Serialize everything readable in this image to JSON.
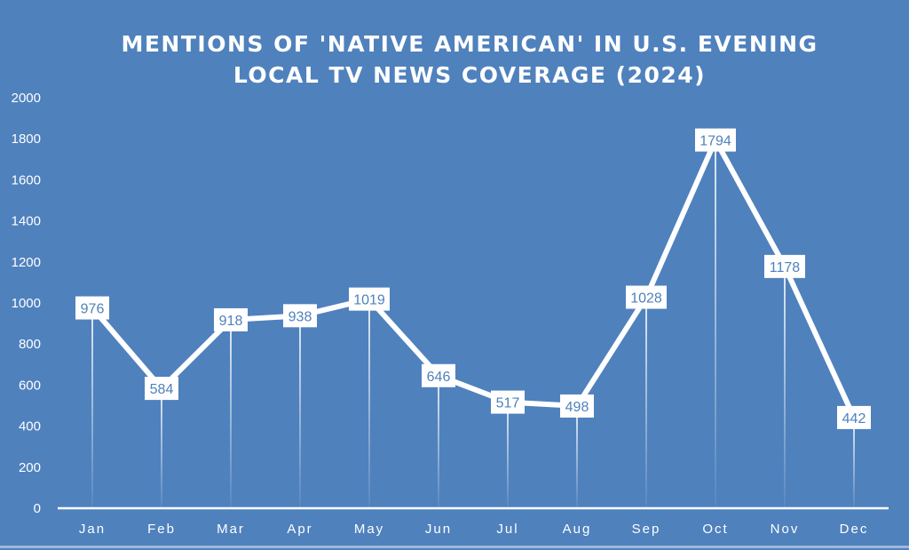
{
  "chart_data": {
    "type": "line",
    "title": "MENTIONS OF 'NATIVE AMERICAN' IN U.S. EVENING LOCAL TV NEWS COVERAGE (2024)",
    "title_lines": [
      "MENTIONS OF 'NATIVE AMERICAN' IN U.S. EVENING",
      "LOCAL TV NEWS COVERAGE (2024)"
    ],
    "categories": [
      "Jan",
      "Feb",
      "Mar",
      "Apr",
      "May",
      "Jun",
      "Jul",
      "Aug",
      "Sep",
      "Oct",
      "Nov",
      "Dec"
    ],
    "values": [
      976,
      584,
      918,
      938,
      1019,
      646,
      517,
      498,
      1028,
      1794,
      1178,
      442
    ],
    "ylim": [
      0,
      2000
    ],
    "yticks": [
      0,
      200,
      400,
      600,
      800,
      1000,
      1200,
      1400,
      1600,
      1800,
      2000
    ],
    "xlabel": "",
    "ylabel": "",
    "grid": false,
    "data_labels": true,
    "colors": {
      "background": "#4f81bd",
      "line": "#ffffff",
      "label_text": "#4f81bd"
    }
  }
}
